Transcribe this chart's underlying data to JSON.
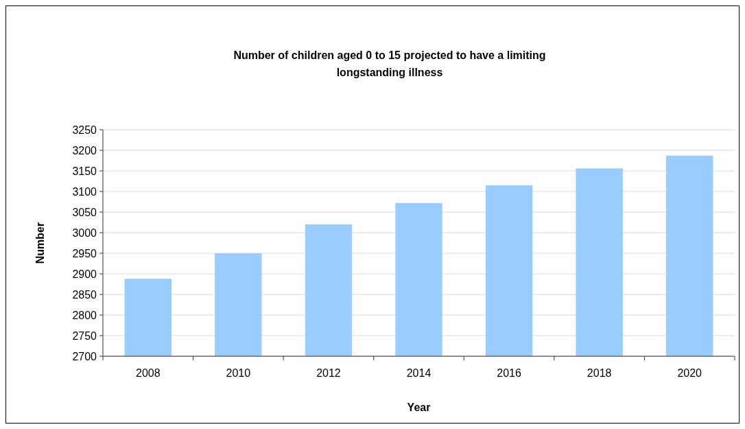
{
  "chart_data": {
    "type": "bar",
    "title": "Number of children aged 0 to 15 projected to have a limiting longstanding illness",
    "xlabel": "Year",
    "ylabel": "Number",
    "categories": [
      "2008",
      "2010",
      "2012",
      "2014",
      "2016",
      "2018",
      "2020"
    ],
    "values": [
      2888,
      2950,
      3020,
      3072,
      3115,
      3156,
      3187
    ],
    "color": "#99ccff",
    "ylim": [
      2700,
      3250
    ],
    "yticks": [
      2700,
      2750,
      2800,
      2850,
      2900,
      2950,
      3000,
      3050,
      3100,
      3150,
      3200,
      3250
    ],
    "grid": "y"
  }
}
